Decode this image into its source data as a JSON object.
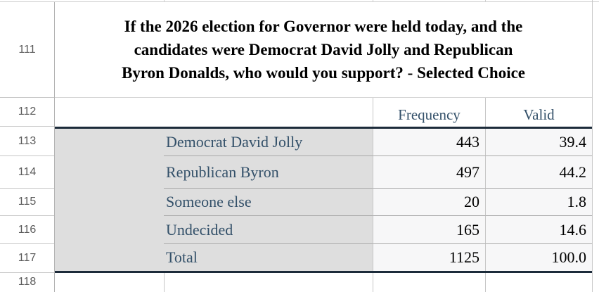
{
  "app": {
    "kind": "spreadsheet",
    "visible_row_numbers": [
      "111",
      "112",
      "113",
      "114",
      "115",
      "116",
      "117",
      "118"
    ]
  },
  "table": {
    "title": "If the 2026 election for Governor were held today, and the candidates were Democrat David Jolly and Republican Byron Donalds, who would you support? - Selected Choice",
    "title_lines": [
      "If the 2026 election for Governor were held today, and the",
      "candidates were Democrat David Jolly and Republican",
      "Byron Donalds, who would you support? - Selected Choice"
    ],
    "columns": {
      "frequency_label": "Frequency",
      "valid_label": "Valid"
    },
    "rows": [
      {
        "label": "Democrat David Jolly",
        "frequency": "443",
        "valid": "39.4"
      },
      {
        "label": "Republican Byron",
        "frequency": "497",
        "valid": "44.2"
      },
      {
        "label": "Someone else",
        "frequency": "20",
        "valid": "1.8"
      },
      {
        "label": "Undecided",
        "frequency": "165",
        "valid": "14.6"
      },
      {
        "label": "Total",
        "frequency": "1125",
        "valid": "100.0"
      }
    ]
  },
  "colors": {
    "label_text": "#335069",
    "header_text": "#335069",
    "value_text": "#000000",
    "row_number_text": "#5a5a5a",
    "stub_background": "#dedede",
    "value_cell_background": "#f7f7f8",
    "thick_rule": "#1c2b3a",
    "grid_line": "#c6c6c6"
  }
}
